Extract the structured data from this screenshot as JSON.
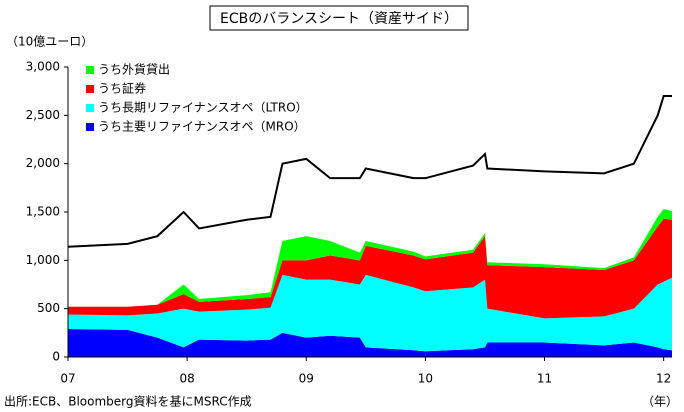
{
  "chart_data": {
    "type": "stacked_area_line",
    "title": "ECBのバランスシート（資産サイド）",
    "y_label": "（10億ユーロ）",
    "x_label": "（年）",
    "source": "出所:ECB、Bloomberg資料を基にMSRC作成",
    "x": [
      2007.0,
      2007.5,
      2007.75,
      2007.97,
      2008.1,
      2008.5,
      2008.7,
      2008.8,
      2009.0,
      2009.2,
      2009.45,
      2009.5,
      2009.9,
      2010.0,
      2010.4,
      2010.5,
      2010.52,
      2011.0,
      2011.5,
      2011.75,
      2011.95,
      2012.0,
      2012.07
    ],
    "series": [
      {
        "name": "うち主要リファイナンスオペ（MRO）",
        "color": "#0000ff",
        "values": [
          290,
          280,
          200,
          100,
          180,
          170,
          180,
          250,
          200,
          220,
          200,
          100,
          70,
          60,
          80,
          100,
          150,
          150,
          120,
          150,
          100,
          80,
          70
        ]
      },
      {
        "name": "うち長期リファイナンスオペ（LTRO）",
        "color": "#00ffff",
        "values": [
          150,
          150,
          250,
          400,
          290,
          320,
          330,
          600,
          600,
          580,
          550,
          750,
          650,
          620,
          640,
          700,
          350,
          250,
          300,
          350,
          650,
          700,
          750
        ]
      },
      {
        "name": "うち証券",
        "color": "#ff0000",
        "values": [
          80,
          90,
          90,
          150,
          100,
          110,
          110,
          150,
          200,
          250,
          250,
          300,
          330,
          330,
          360,
          450,
          450,
          530,
          480,
          500,
          600,
          650,
          600
        ]
      },
      {
        "name": "うち外貨貸出",
        "color": "#00ff00",
        "values": [
          0,
          0,
          0,
          100,
          30,
          40,
          50,
          200,
          250,
          150,
          80,
          50,
          40,
          30,
          30,
          30,
          30,
          30,
          20,
          30,
          100,
          100,
          90
        ]
      }
    ],
    "line": {
      "color": "#000000",
      "values": [
        1140,
        1170,
        1250,
        1500,
        1330,
        1420,
        1450,
        2000,
        2050,
        1850,
        1850,
        1950,
        1850,
        1850,
        1980,
        2100,
        1950,
        1920,
        1900,
        2000,
        2500,
        2700,
        2700
      ]
    },
    "xlim": [
      2007,
      2012.07
    ],
    "xticks": [
      {
        "value": 2007,
        "label": "07"
      },
      {
        "value": 2008,
        "label": "08"
      },
      {
        "value": 2009,
        "label": "09"
      },
      {
        "value": 2010,
        "label": "10"
      },
      {
        "value": 2011,
        "label": "11"
      },
      {
        "value": 2012,
        "label": "12"
      }
    ],
    "ylim": [
      0,
      3000
    ],
    "yticks": [
      0,
      500,
      {
        "value": 1000,
        "label": "1,000"
      },
      {
        "value": 1500,
        "label": "1,500"
      },
      {
        "value": 2000,
        "label": "2,000"
      },
      {
        "value": 2500,
        "label": "2,500"
      },
      {
        "value": 3000,
        "label": "3,000"
      }
    ],
    "legend": "upper left"
  }
}
